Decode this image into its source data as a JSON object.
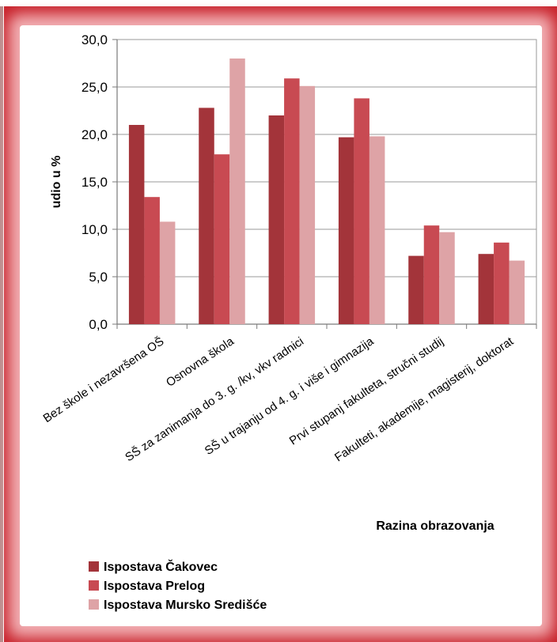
{
  "page": {
    "header_fragment": "…"
  },
  "chart_data": {
    "type": "bar",
    "title": "",
    "xlabel": "Razina obrazovanja",
    "ylabel": "udio u %",
    "ylim": [
      0,
      30
    ],
    "yticks": [
      "0,0",
      "5,0",
      "10,0",
      "15,0",
      "20,0",
      "25,0",
      "30,0"
    ],
    "categories": [
      "Bez škole i nezavršena OŠ",
      "Osnovna škola",
      "SŠ za zanimanja do 3. g. /kv, vkv radnici",
      "SŠ u trajanju od 4. g. i više i gimnazija",
      "Prvi stupanj fakulteta, stručni studij",
      "Fakulteti, akademije, magisterij, doktorat"
    ],
    "series": [
      {
        "name": "Ispostava Čakovec",
        "color": "#a3343a",
        "values": [
          21.0,
          22.8,
          22.0,
          19.7,
          7.2,
          7.4
        ]
      },
      {
        "name": "Ispostava Prelog",
        "color": "#c84a52",
        "values": [
          13.4,
          17.9,
          25.9,
          23.8,
          10.4,
          8.6
        ]
      },
      {
        "name": "Ispostava Mursko Središće",
        "color": "#dea3a6",
        "values": [
          10.8,
          28.0,
          25.1,
          19.8,
          9.7,
          6.7
        ]
      }
    ],
    "grid": true,
    "legend": "bottom-left"
  }
}
